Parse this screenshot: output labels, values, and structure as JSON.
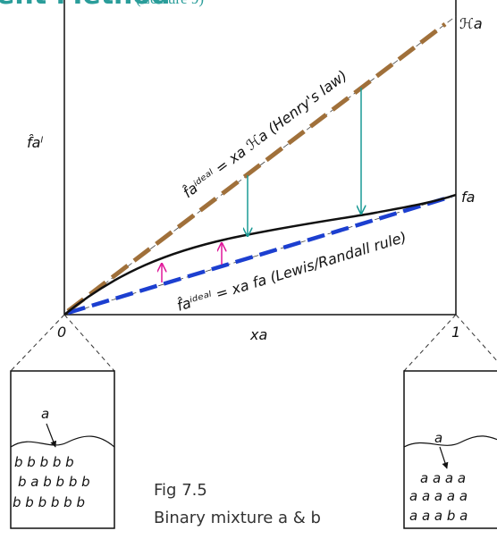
{
  "header": {
    "title": "ent Method",
    "subtitle": "(Lecture 9)"
  },
  "diagram": {
    "henry_end_label": "ℋa",
    "y_label": "f̂aˡ",
    "henry_label": "f̂aⁱᵈᵉᵃˡ = xa ℋa (Henry's law)",
    "pure_label": "fa",
    "lewis_label": "f̂aⁱᵈᵉᵃˡ = xa fa (Lewis/Randall rule)",
    "x_start": "0",
    "x_label": "xa",
    "x_end": "1"
  },
  "left_box": {
    "solute": "a",
    "rows": [
      "b b b b b",
      "b a b b b b",
      "b b b b b b"
    ]
  },
  "right_box": {
    "solute": "a",
    "rows": [
      "a a a a",
      "a a a a a",
      "a a a b a"
    ]
  },
  "caption": {
    "figure": "Fig 7.5",
    "text": "Binary mixture a & b"
  }
}
